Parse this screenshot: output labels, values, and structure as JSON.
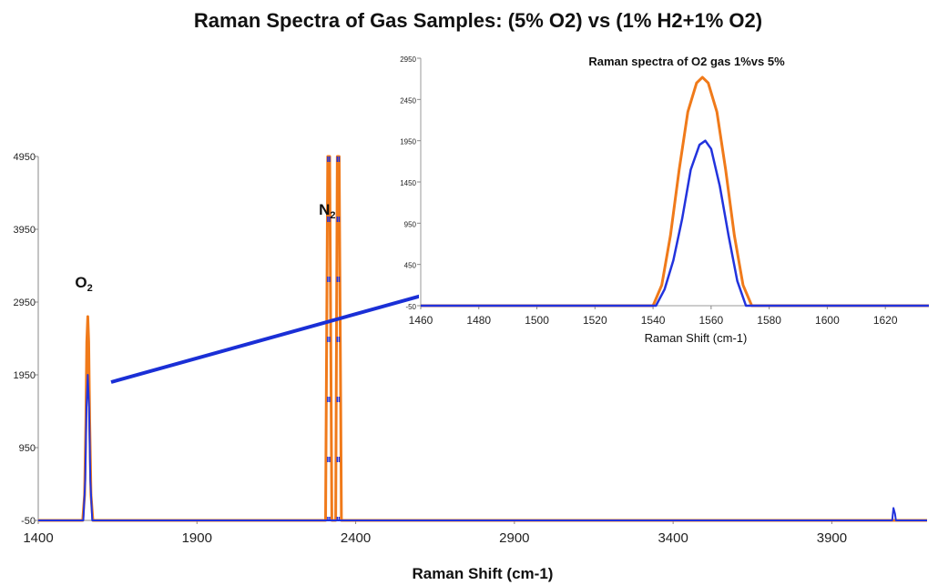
{
  "colors": {
    "series_a": "#f07a1a",
    "series_b": "#2233dd",
    "dash": "#c89aa8",
    "arrow": "#1a2fd6"
  },
  "chart_data": [
    {
      "type": "line",
      "title": "Raman Spectra of Gas Samples: (5% O2) vs (1% H2+1% O2)",
      "xlabel": "Raman Shift (cm-1)",
      "ylabel": "",
      "xlim": [
        1400,
        4200
      ],
      "ylim": [
        -50,
        4950
      ],
      "xticks": [
        "1400",
        "1900",
        "2400",
        "2900",
        "3400",
        "3900"
      ],
      "yticks": [
        "-50",
        "950",
        "1950",
        "2950",
        "3950",
        "4950"
      ],
      "annotations": [
        {
          "label": "O",
          "sub": "2",
          "x": 1556,
          "y": 3150
        },
        {
          "label": "N",
          "sub": "2",
          "x": 2324,
          "y": 4150
        }
      ],
      "series": [
        {
          "color": "series_a",
          "points": [
            [
              1400,
              -50
            ],
            [
              1540,
              -50
            ],
            [
              1546,
              300
            ],
            [
              1550,
              1300
            ],
            [
              1553,
              2400
            ],
            [
              1556,
              2750
            ],
            [
              1559,
              2400
            ],
            [
              1562,
              1300
            ],
            [
              1566,
              300
            ],
            [
              1572,
              -50
            ],
            [
              2305,
              -50
            ],
            [
              2312,
              4950
            ],
            [
              2318,
              4950
            ],
            [
              2325,
              -50
            ],
            [
              2337,
              -50
            ],
            [
              2342,
              4950
            ],
            [
              2348,
              4950
            ],
            [
              2355,
              -50
            ],
            [
              4200,
              -50
            ]
          ]
        },
        {
          "color": "series_b",
          "points": [
            [
              1400,
              -50
            ],
            [
              1542,
              -50
            ],
            [
              1548,
              500
            ],
            [
              1552,
              1500
            ],
            [
              1556,
              1950
            ],
            [
              1560,
              1500
            ],
            [
              1564,
              500
            ],
            [
              1570,
              -50
            ],
            [
              4090,
              -50
            ],
            [
              4094,
              120
            ],
            [
              4099,
              40
            ],
            [
              4102,
              -50
            ],
            [
              4200,
              -50
            ]
          ]
        }
      ]
    },
    {
      "type": "line",
      "title": "Raman spectra of O2 gas 1%vs 5%",
      "xlabel": "Raman Shift (cm-1)",
      "ylabel": "",
      "xlim": [
        1460,
        1635
      ],
      "ylim": [
        -50,
        2950
      ],
      "xticks": [
        "1460",
        "1480",
        "1500",
        "1520",
        "1540",
        "1560",
        "1580",
        "1600",
        "1620"
      ],
      "yticks": [
        "-50",
        "450",
        "950",
        "1450",
        "1950",
        "2450",
        "2950"
      ],
      "series": [
        {
          "color": "series_a",
          "points": [
            [
              1460,
              -50
            ],
            [
              1540,
              -50
            ],
            [
              1543,
              200
            ],
            [
              1546,
              800
            ],
            [
              1549,
              1600
            ],
            [
              1552,
              2300
            ],
            [
              1555,
              2650
            ],
            [
              1557,
              2720
            ],
            [
              1559,
              2650
            ],
            [
              1562,
              2300
            ],
            [
              1565,
              1600
            ],
            [
              1568,
              800
            ],
            [
              1571,
              200
            ],
            [
              1574,
              -50
            ],
            [
              1635,
              -50
            ]
          ]
        },
        {
          "color": "series_b",
          "points": [
            [
              1460,
              -50
            ],
            [
              1541,
              -50
            ],
            [
              1544,
              150
            ],
            [
              1547,
              500
            ],
            [
              1550,
              1000
            ],
            [
              1553,
              1600
            ],
            [
              1556,
              1900
            ],
            [
              1558,
              1950
            ],
            [
              1560,
              1850
            ],
            [
              1563,
              1400
            ],
            [
              1566,
              800
            ],
            [
              1569,
              250
            ],
            [
              1572,
              -50
            ],
            [
              1635,
              -50
            ]
          ]
        }
      ]
    }
  ]
}
